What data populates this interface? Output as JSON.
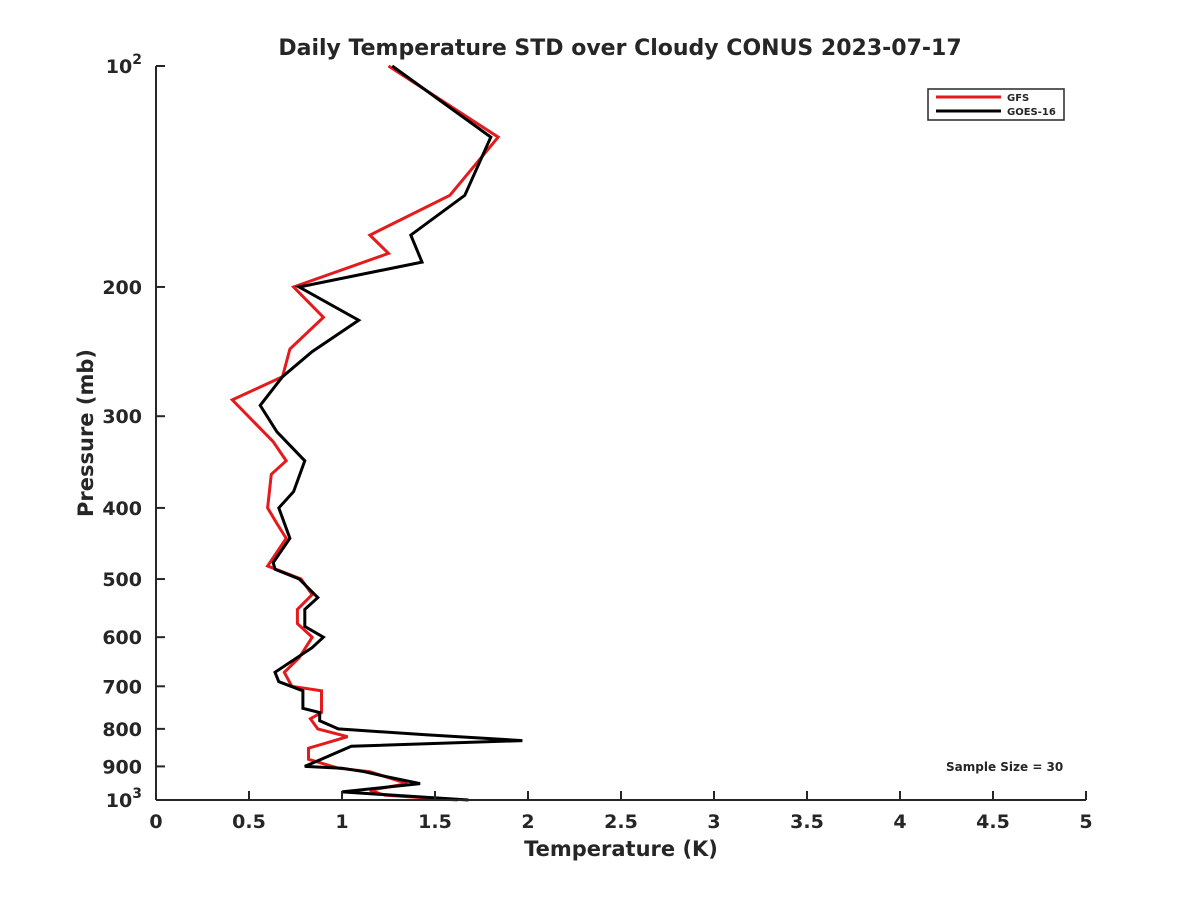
{
  "chart_data": {
    "type": "line",
    "title": "Daily Temperature STD over Cloudy CONUS 2023-07-17",
    "xlabel": "Temperature (K)",
    "ylabel": "Pressure (mb)",
    "xlim": [
      0,
      5
    ],
    "ylim": [
      100,
      1000
    ],
    "y_scale": "log",
    "y_reversed": true,
    "grid": false,
    "legend_position": "top-right",
    "x_ticks": [
      {
        "value": 0,
        "label": "0"
      },
      {
        "value": 0.5,
        "label": "0.5"
      },
      {
        "value": 1,
        "label": "1"
      },
      {
        "value": 1.5,
        "label": "1.5"
      },
      {
        "value": 2,
        "label": "2"
      },
      {
        "value": 2.5,
        "label": "2.5"
      },
      {
        "value": 3,
        "label": "3"
      },
      {
        "value": 3.5,
        "label": "3.5"
      },
      {
        "value": 4,
        "label": "4"
      },
      {
        "value": 4.5,
        "label": "4.5"
      },
      {
        "value": 5,
        "label": "5"
      }
    ],
    "y_ticks": [
      {
        "value": 100,
        "label": "10",
        "exp": "2"
      },
      {
        "value": 200,
        "label": "200"
      },
      {
        "value": 300,
        "label": "300"
      },
      {
        "value": 400,
        "label": "400"
      },
      {
        "value": 500,
        "label": "500"
      },
      {
        "value": 600,
        "label": "600"
      },
      {
        "value": 700,
        "label": "700"
      },
      {
        "value": 800,
        "label": "800"
      },
      {
        "value": 900,
        "label": "900"
      },
      {
        "value": 1000,
        "label": "10",
        "exp": "3"
      }
    ],
    "annotation": "Sample Size = 30",
    "series": [
      {
        "name": "GFS",
        "color": "#e41a1c",
        "points": [
          {
            "x": 1.25,
            "y": 100
          },
          {
            "x": 1.84,
            "y": 125
          },
          {
            "x": 1.58,
            "y": 150
          },
          {
            "x": 1.15,
            "y": 170
          },
          {
            "x": 1.25,
            "y": 180
          },
          {
            "x": 0.74,
            "y": 200
          },
          {
            "x": 0.9,
            "y": 220
          },
          {
            "x": 0.72,
            "y": 243
          },
          {
            "x": 0.68,
            "y": 265
          },
          {
            "x": 0.41,
            "y": 285
          },
          {
            "x": 0.63,
            "y": 325
          },
          {
            "x": 0.7,
            "y": 345
          },
          {
            "x": 0.62,
            "y": 360
          },
          {
            "x": 0.6,
            "y": 400
          },
          {
            "x": 0.65,
            "y": 420
          },
          {
            "x": 0.7,
            "y": 440
          },
          {
            "x": 0.6,
            "y": 480
          },
          {
            "x": 0.78,
            "y": 500
          },
          {
            "x": 0.84,
            "y": 525
          },
          {
            "x": 0.76,
            "y": 550
          },
          {
            "x": 0.76,
            "y": 575
          },
          {
            "x": 0.84,
            "y": 600
          },
          {
            "x": 0.77,
            "y": 640
          },
          {
            "x": 0.69,
            "y": 670
          },
          {
            "x": 0.73,
            "y": 700
          },
          {
            "x": 0.89,
            "y": 710
          },
          {
            "x": 0.89,
            "y": 760
          },
          {
            "x": 0.83,
            "y": 775
          },
          {
            "x": 0.87,
            "y": 800
          },
          {
            "x": 1.03,
            "y": 820
          },
          {
            "x": 0.82,
            "y": 850
          },
          {
            "x": 0.82,
            "y": 880
          },
          {
            "x": 0.98,
            "y": 905
          },
          {
            "x": 1.15,
            "y": 915
          },
          {
            "x": 1.35,
            "y": 950
          },
          {
            "x": 1.15,
            "y": 970
          },
          {
            "x": 1.23,
            "y": 985
          },
          {
            "x": 1.62,
            "y": 1000
          }
        ]
      },
      {
        "name": "GOES-16",
        "color": "#000000",
        "points": [
          {
            "x": 1.27,
            "y": 100
          },
          {
            "x": 1.8,
            "y": 125
          },
          {
            "x": 1.66,
            "y": 150
          },
          {
            "x": 1.37,
            "y": 170
          },
          {
            "x": 1.43,
            "y": 185
          },
          {
            "x": 0.77,
            "y": 200
          },
          {
            "x": 1.09,
            "y": 222
          },
          {
            "x": 0.84,
            "y": 245
          },
          {
            "x": 0.68,
            "y": 265
          },
          {
            "x": 0.56,
            "y": 290
          },
          {
            "x": 0.65,
            "y": 315
          },
          {
            "x": 0.8,
            "y": 345
          },
          {
            "x": 0.74,
            "y": 380
          },
          {
            "x": 0.66,
            "y": 400
          },
          {
            "x": 0.72,
            "y": 440
          },
          {
            "x": 0.63,
            "y": 475
          },
          {
            "x": 0.64,
            "y": 485
          },
          {
            "x": 0.77,
            "y": 500
          },
          {
            "x": 0.87,
            "y": 530
          },
          {
            "x": 0.8,
            "y": 550
          },
          {
            "x": 0.8,
            "y": 580
          },
          {
            "x": 0.9,
            "y": 600
          },
          {
            "x": 0.84,
            "y": 620
          },
          {
            "x": 0.64,
            "y": 670
          },
          {
            "x": 0.66,
            "y": 690
          },
          {
            "x": 0.79,
            "y": 710
          },
          {
            "x": 0.79,
            "y": 750
          },
          {
            "x": 0.88,
            "y": 760
          },
          {
            "x": 0.88,
            "y": 780
          },
          {
            "x": 0.98,
            "y": 800
          },
          {
            "x": 1.45,
            "y": 815
          },
          {
            "x": 1.97,
            "y": 830
          },
          {
            "x": 1.05,
            "y": 845
          },
          {
            "x": 0.8,
            "y": 900
          },
          {
            "x": 1.0,
            "y": 905
          },
          {
            "x": 1.12,
            "y": 915
          },
          {
            "x": 1.2,
            "y": 925
          },
          {
            "x": 1.42,
            "y": 950
          },
          {
            "x": 1.0,
            "y": 975
          },
          {
            "x": 1.68,
            "y": 1000
          }
        ]
      }
    ]
  }
}
